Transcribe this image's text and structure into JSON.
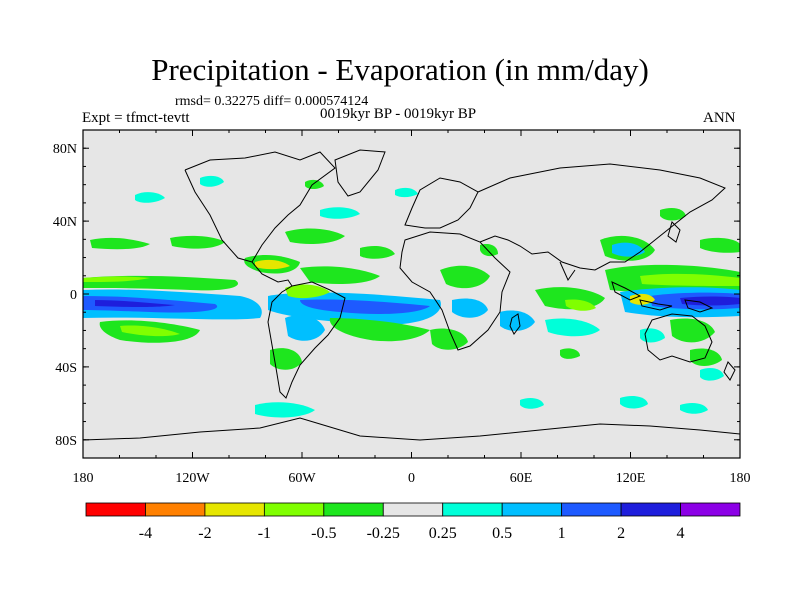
{
  "figure": {
    "title": "Precipitation - Evaporation (in mm/day)",
    "stats": "rmsd= 0.32275 diff= 0.000574124",
    "periods": "0019kyr BP - 0019kyr BP",
    "experiment": "Expt = tfmct-tevtt",
    "season": "ANN"
  },
  "map": {
    "projection": "cylindrical-equidistant",
    "lon_range": [
      -180,
      180
    ],
    "lat_range": [
      -90,
      90
    ],
    "lat_ticks": [
      {
        "value": 80,
        "label": "80N"
      },
      {
        "value": 40,
        "label": "40N"
      },
      {
        "value": 0,
        "label": "0"
      },
      {
        "value": -40,
        "label": "40S"
      },
      {
        "value": -80,
        "label": "80S"
      }
    ],
    "lon_ticks": [
      {
        "value": -180,
        "label": "180"
      },
      {
        "value": -120,
        "label": "120W"
      },
      {
        "value": -60,
        "label": "60W"
      },
      {
        "value": 0,
        "label": "0"
      },
      {
        "value": 60,
        "label": "60E"
      },
      {
        "value": 120,
        "label": "120E"
      },
      {
        "value": 180,
        "label": "180"
      }
    ],
    "background_color": "#e6e6e6"
  },
  "colorbar": {
    "labels": [
      "-4",
      "-2",
      "-1",
      "-0.5",
      "-0.25",
      "0.25",
      "0.5",
      "1",
      "2",
      "4"
    ],
    "colors": [
      "#ff0000",
      "#ff8000",
      "#e6e600",
      "#80ff00",
      "#1ee61e",
      "#e6e6e6",
      "#00ffd9",
      "#00bfff",
      "#1e5aff",
      "#1e1edc",
      "#8c00e6"
    ]
  }
}
